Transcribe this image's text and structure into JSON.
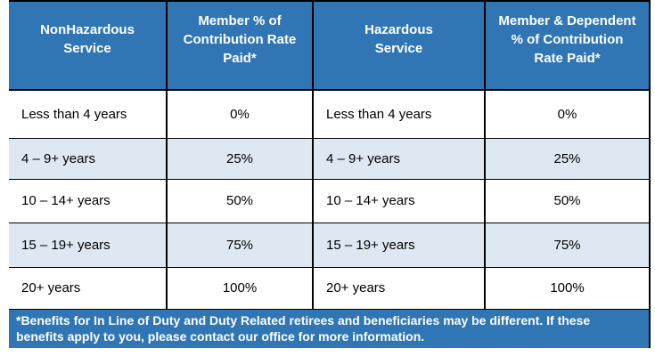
{
  "colors": {
    "header_bg": "#3076B5",
    "alt_row_bg": "#DEE8F2",
    "footnote_bg": "#3076B5",
    "border": "#000000",
    "header_text": "#FFFFFF",
    "body_text": "#000000"
  },
  "table": {
    "columns": [
      "NonHazardous\nService",
      "Member % of\nContribution Rate\nPaid*",
      "Hazardous\nService",
      "Member & Dependent\n% of Contribution\nRate Paid*"
    ],
    "rows": [
      [
        "Less than 4 years",
        "0%",
        "Less than 4 years",
        "0%"
      ],
      [
        "4 – 9+ years",
        "25%",
        "4 – 9+ years",
        "25%"
      ],
      [
        "10 – 14+ years",
        "50%",
        "10 – 14+ years",
        "50%"
      ],
      [
        "15 – 19+ years",
        "75%",
        "15 – 19+ years",
        "75%"
      ],
      [
        "20+ years",
        "100%",
        "20+ years",
        "100%"
      ]
    ],
    "footnote": "*Benefits for In Line of Duty and Duty Related retirees and beneficiaries may be different. If these\nbenefits apply to you, please contact our office for more information."
  }
}
